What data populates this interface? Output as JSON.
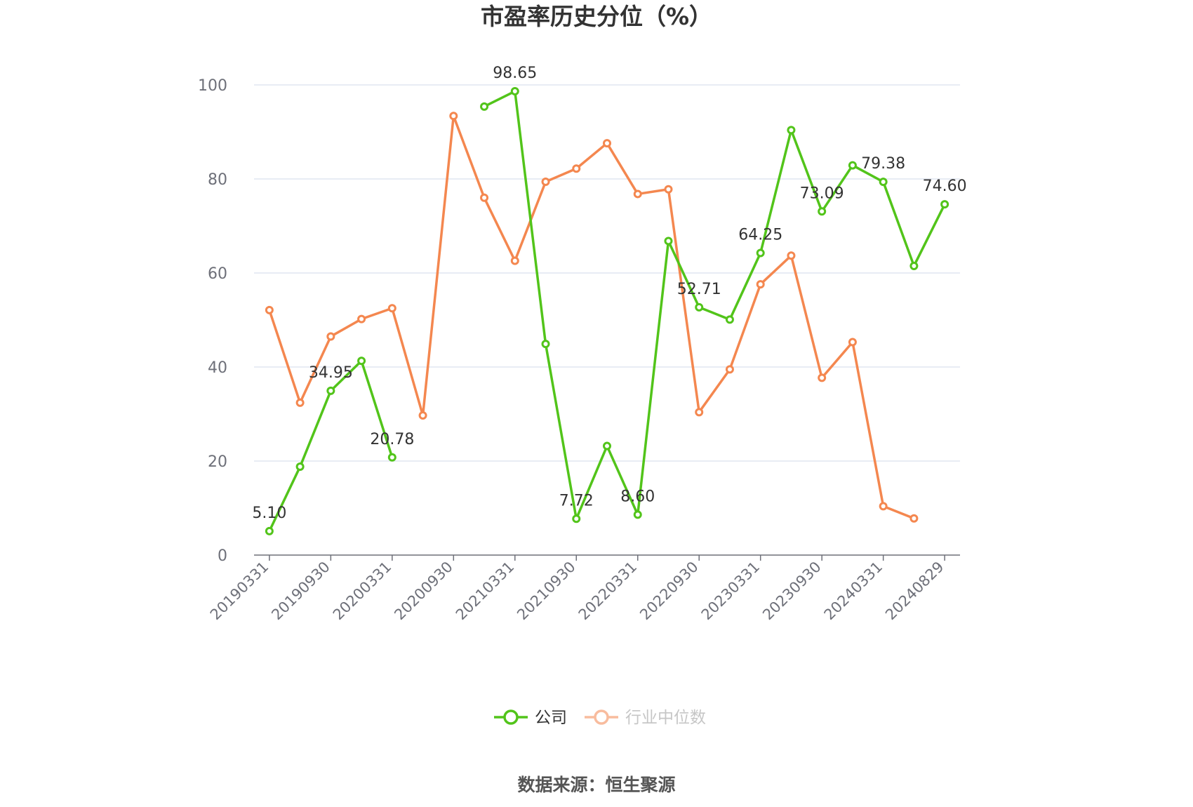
{
  "chart_data": {
    "type": "line",
    "title": "市盈率历史分位（%）",
    "ylim": [
      0,
      100
    ],
    "yticks": [
      "0",
      "20",
      "40",
      "60",
      "80",
      "100"
    ],
    "categories": [
      "20190331",
      "20190630",
      "20190930",
      "20191231",
      "20200331",
      "20200630",
      "20200930",
      "20201231",
      "20210331",
      "20210630",
      "20210930",
      "20211231",
      "20220331",
      "20220630",
      "20220930",
      "20221231",
      "20230331",
      "20230630",
      "20230930",
      "20231231",
      "20240331",
      "20240630",
      "20240829"
    ],
    "xtick_labels": [
      "20190331",
      "20190930",
      "20200331",
      "20200930",
      "20210331",
      "20210930",
      "20220331",
      "20220930",
      "20230331",
      "20230930",
      "20240331",
      "20240829"
    ],
    "grid": true,
    "legend_position": "bottom",
    "series": [
      {
        "name": "公司",
        "color": "#52c41a",
        "values": [
          5.1,
          18.8,
          34.95,
          41.3,
          20.78,
          null,
          null,
          95.4,
          98.65,
          44.9,
          7.72,
          23.2,
          8.6,
          66.8,
          52.71,
          50.1,
          64.25,
          90.4,
          73.09,
          82.9,
          79.38,
          61.5,
          74.6
        ],
        "data_labels": {
          "0": "5.10",
          "2": "34.95",
          "4": "20.78",
          "8": "98.65",
          "10": "7.72",
          "12": "8.60",
          "14": "52.71",
          "16": "64.25",
          "18": "73.09",
          "20": "79.38",
          "22": "74.60"
        }
      },
      {
        "name": "行业中位数",
        "color": "#f4874f",
        "values": [
          52.1,
          32.4,
          46.5,
          50.2,
          52.5,
          29.7,
          93.4,
          76.0,
          62.6,
          79.4,
          82.2,
          87.6,
          76.8,
          77.8,
          30.4,
          39.5,
          57.6,
          63.7,
          37.7,
          45.3,
          10.4,
          7.8,
          null
        ]
      }
    ]
  },
  "legend": {
    "items": [
      {
        "label": "公司",
        "color": "#52c41a",
        "text_color": "#333333"
      },
      {
        "label": "行业中位数",
        "color": "#f4874f",
        "text_color": "#999999"
      }
    ]
  },
  "source": "数据来源：恒生聚源"
}
